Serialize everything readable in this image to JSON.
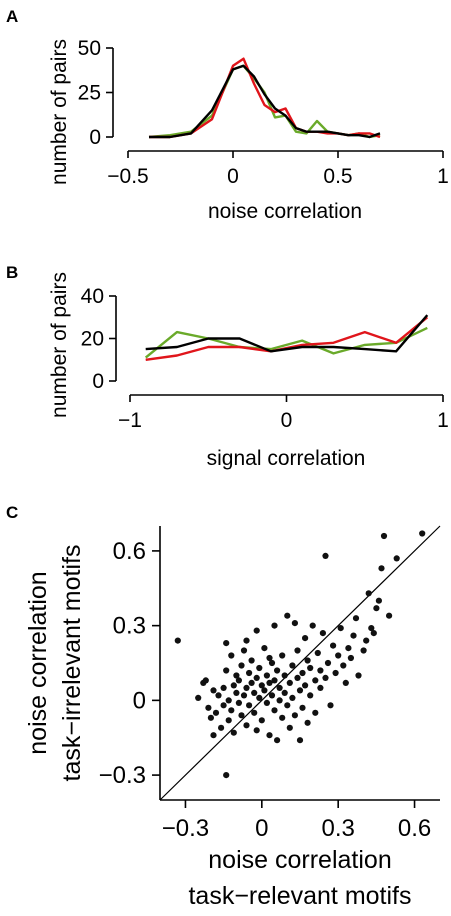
{
  "chart_data": [
    {
      "panel": "A",
      "type": "line",
      "xlabel": "noise correlation",
      "ylabel": "number of pairs",
      "xlim": [
        -0.5,
        1
      ],
      "ylim": [
        0,
        50
      ],
      "xticks": [
        -0.5,
        0,
        0.5,
        1
      ],
      "xtick_labels": [
        "−0.5",
        "0",
        "0.5",
        "1"
      ],
      "yticks": [
        0,
        25,
        50
      ],
      "ytick_labels": [
        "0",
        "25",
        "50"
      ],
      "x": [
        -0.4,
        -0.3,
        -0.2,
        -0.1,
        0.0,
        0.05,
        0.1,
        0.15,
        0.2,
        0.25,
        0.3,
        0.35,
        0.4,
        0.45,
        0.5,
        0.55,
        0.6,
        0.65,
        0.7
      ],
      "series": [
        {
          "color": "#6aaa2a",
          "values": [
            0,
            1,
            3,
            12,
            38,
            40,
            33,
            25,
            11,
            12,
            3,
            2,
            9,
            3,
            2,
            1,
            2,
            0,
            1
          ]
        },
        {
          "color": "#e0151b",
          "values": [
            0,
            0,
            2,
            10,
            40,
            44,
            30,
            18,
            14,
            16,
            5,
            3,
            3,
            2,
            2,
            1,
            2,
            2,
            0
          ]
        },
        {
          "color": "#000000",
          "values": [
            0,
            0,
            2,
            15,
            38,
            40,
            34,
            24,
            16,
            12,
            5,
            3,
            3,
            3,
            2,
            1,
            1,
            0,
            2
          ]
        }
      ],
      "grid": false
    },
    {
      "panel": "B",
      "type": "line",
      "xlabel": "signal correlation",
      "ylabel": "number of pairs",
      "xlim": [
        -1,
        1
      ],
      "ylim": [
        0,
        40
      ],
      "xticks": [
        -1,
        0,
        1
      ],
      "xtick_labels": [
        "−1",
        "0",
        "1"
      ],
      "yticks": [
        0,
        20,
        40
      ],
      "ytick_labels": [
        "0",
        "20",
        "40"
      ],
      "x": [
        -0.9,
        -0.7,
        -0.5,
        -0.3,
        -0.1,
        0.1,
        0.3,
        0.5,
        0.7,
        0.9
      ],
      "series": [
        {
          "color": "#6aaa2a",
          "values": [
            11,
            23,
            20,
            16,
            15,
            19,
            13,
            17,
            18,
            25
          ]
        },
        {
          "color": "#e0151b",
          "values": [
            10,
            12,
            16,
            16,
            14,
            17,
            18,
            23,
            18,
            30
          ]
        },
        {
          "color": "#000000",
          "values": [
            15,
            16,
            20,
            20,
            14,
            16,
            16,
            15,
            14,
            31
          ]
        }
      ],
      "grid": false
    },
    {
      "panel": "C",
      "type": "scatter",
      "xlabel": [
        "noise correlation",
        "task−relevant motifs"
      ],
      "ylabel": [
        "noise correlation",
        "task−irrelevant motifs"
      ],
      "xlim": [
        -0.4,
        0.7
      ],
      "ylim": [
        -0.4,
        0.7
      ],
      "xticks": [
        -0.3,
        0,
        0.3,
        0.6
      ],
      "xtick_labels": [
        "−0.3",
        "0",
        "0.3",
        "0.6"
      ],
      "yticks": [
        -0.3,
        0,
        0.3,
        0.6
      ],
      "ytick_labels": [
        "−0.3",
        "0",
        "0.3",
        "0.6"
      ],
      "identity_line": true,
      "grid": false,
      "points": [
        [
          -0.33,
          0.24
        ],
        [
          -0.14,
          -0.3
        ],
        [
          -0.25,
          0.01
        ],
        [
          -0.23,
          0.07
        ],
        [
          -0.22,
          0.08
        ],
        [
          -0.21,
          -0.03
        ],
        [
          -0.2,
          -0.07
        ],
        [
          -0.19,
          0.04
        ],
        [
          -0.19,
          -0.14
        ],
        [
          -0.18,
          -0.05
        ],
        [
          -0.17,
          0.02
        ],
        [
          -0.16,
          -0.11
        ],
        [
          -0.15,
          0.05
        ],
        [
          -0.15,
          -0.02
        ],
        [
          -0.14,
          0.12
        ],
        [
          -0.14,
          0.23
        ],
        [
          -0.13,
          -0.08
        ],
        [
          -0.13,
          0.0
        ],
        [
          -0.12,
          0.18
        ],
        [
          -0.12,
          -0.04
        ],
        [
          -0.11,
          0.06
        ],
        [
          -0.11,
          -0.13
        ],
        [
          -0.1,
          0.03
        ],
        [
          -0.1,
          0.1
        ],
        [
          -0.09,
          -0.01
        ],
        [
          -0.09,
          0.08
        ],
        [
          -0.08,
          0.14
        ],
        [
          -0.08,
          -0.06
        ],
        [
          -0.07,
          0.02
        ],
        [
          -0.07,
          0.2
        ],
        [
          -0.06,
          0.05
        ],
        [
          -0.06,
          -0.1
        ],
        [
          -0.05,
          0.11
        ],
        [
          -0.05,
          -0.02
        ],
        [
          -0.04,
          0.07
        ],
        [
          -0.04,
          0.16
        ],
        [
          -0.03,
          -0.05
        ],
        [
          -0.03,
          0.03
        ],
        [
          -0.02,
          0.09
        ],
        [
          -0.02,
          -0.12
        ],
        [
          -0.01,
          0.01
        ],
        [
          -0.01,
          0.13
        ],
        [
          0.0,
          0.06
        ],
        [
          0.0,
          -0.08
        ],
        [
          0.01,
          0.04
        ],
        [
          0.01,
          0.21
        ],
        [
          0.02,
          -0.01
        ],
        [
          0.02,
          0.1
        ],
        [
          0.03,
          0.07
        ],
        [
          0.03,
          -0.14
        ],
        [
          0.04,
          0.02
        ],
        [
          0.04,
          0.15
        ],
        [
          0.05,
          -0.04
        ],
        [
          0.05,
          0.08
        ],
        [
          0.06,
          0.12
        ],
        [
          0.06,
          -0.16
        ],
        [
          0.07,
          0.0
        ],
        [
          0.07,
          0.05
        ],
        [
          0.08,
          0.18
        ],
        [
          0.08,
          -0.07
        ],
        [
          0.09,
          0.03
        ],
        [
          0.09,
          0.1
        ],
        [
          0.1,
          -0.02
        ],
        [
          0.1,
          0.34
        ],
        [
          0.11,
          0.07
        ],
        [
          0.11,
          -0.11
        ],
        [
          0.12,
          0.14
        ],
        [
          0.12,
          0.01
        ],
        [
          0.13,
          0.31
        ],
        [
          0.13,
          -0.06
        ],
        [
          0.14,
          0.09
        ],
        [
          0.14,
          0.2
        ],
        [
          0.15,
          -0.16
        ],
        [
          0.15,
          0.04
        ],
        [
          0.16,
          0.11
        ],
        [
          0.16,
          -0.03
        ],
        [
          0.17,
          0.25
        ],
        [
          0.17,
          0.06
        ],
        [
          0.18,
          0.16
        ],
        [
          0.18,
          -0.09
        ],
        [
          0.19,
          0.02
        ],
        [
          0.19,
          0.13
        ],
        [
          0.2,
          0.3
        ],
        [
          0.21,
          0.08
        ],
        [
          0.21,
          -0.05
        ],
        [
          0.22,
          0.19
        ],
        [
          0.23,
          0.05
        ],
        [
          0.23,
          0.12
        ],
        [
          0.24,
          0.27
        ],
        [
          0.25,
          0.58
        ],
        [
          0.25,
          0.09
        ],
        [
          0.26,
          0.15
        ],
        [
          0.27,
          -0.02
        ],
        [
          0.28,
          0.22
        ],
        [
          0.29,
          0.11
        ],
        [
          0.3,
          0.18
        ],
        [
          0.31,
          0.29
        ],
        [
          0.32,
          0.14
        ],
        [
          0.33,
          0.07
        ],
        [
          0.34,
          0.21
        ],
        [
          0.35,
          0.17
        ],
        [
          0.36,
          0.26
        ],
        [
          0.37,
          0.33
        ],
        [
          0.38,
          0.1
        ],
        [
          0.4,
          0.2
        ],
        [
          0.41,
          0.24
        ],
        [
          0.42,
          0.43
        ],
        [
          0.43,
          0.29
        ],
        [
          0.44,
          0.27
        ],
        [
          0.45,
          0.37
        ],
        [
          0.46,
          0.4
        ],
        [
          0.47,
          0.53
        ],
        [
          0.48,
          0.66
        ],
        [
          0.5,
          0.34
        ],
        [
          0.53,
          0.57
        ],
        [
          0.63,
          0.67
        ],
        [
          -0.02,
          0.28
        ],
        [
          0.05,
          0.3
        ],
        [
          -0.06,
          0.24
        ],
        [
          0.03,
          0.17
        ]
      ]
    }
  ],
  "panels": {
    "a": {
      "letter": "A"
    },
    "b": {
      "letter": "B"
    },
    "c": {
      "letter": "C"
    }
  }
}
